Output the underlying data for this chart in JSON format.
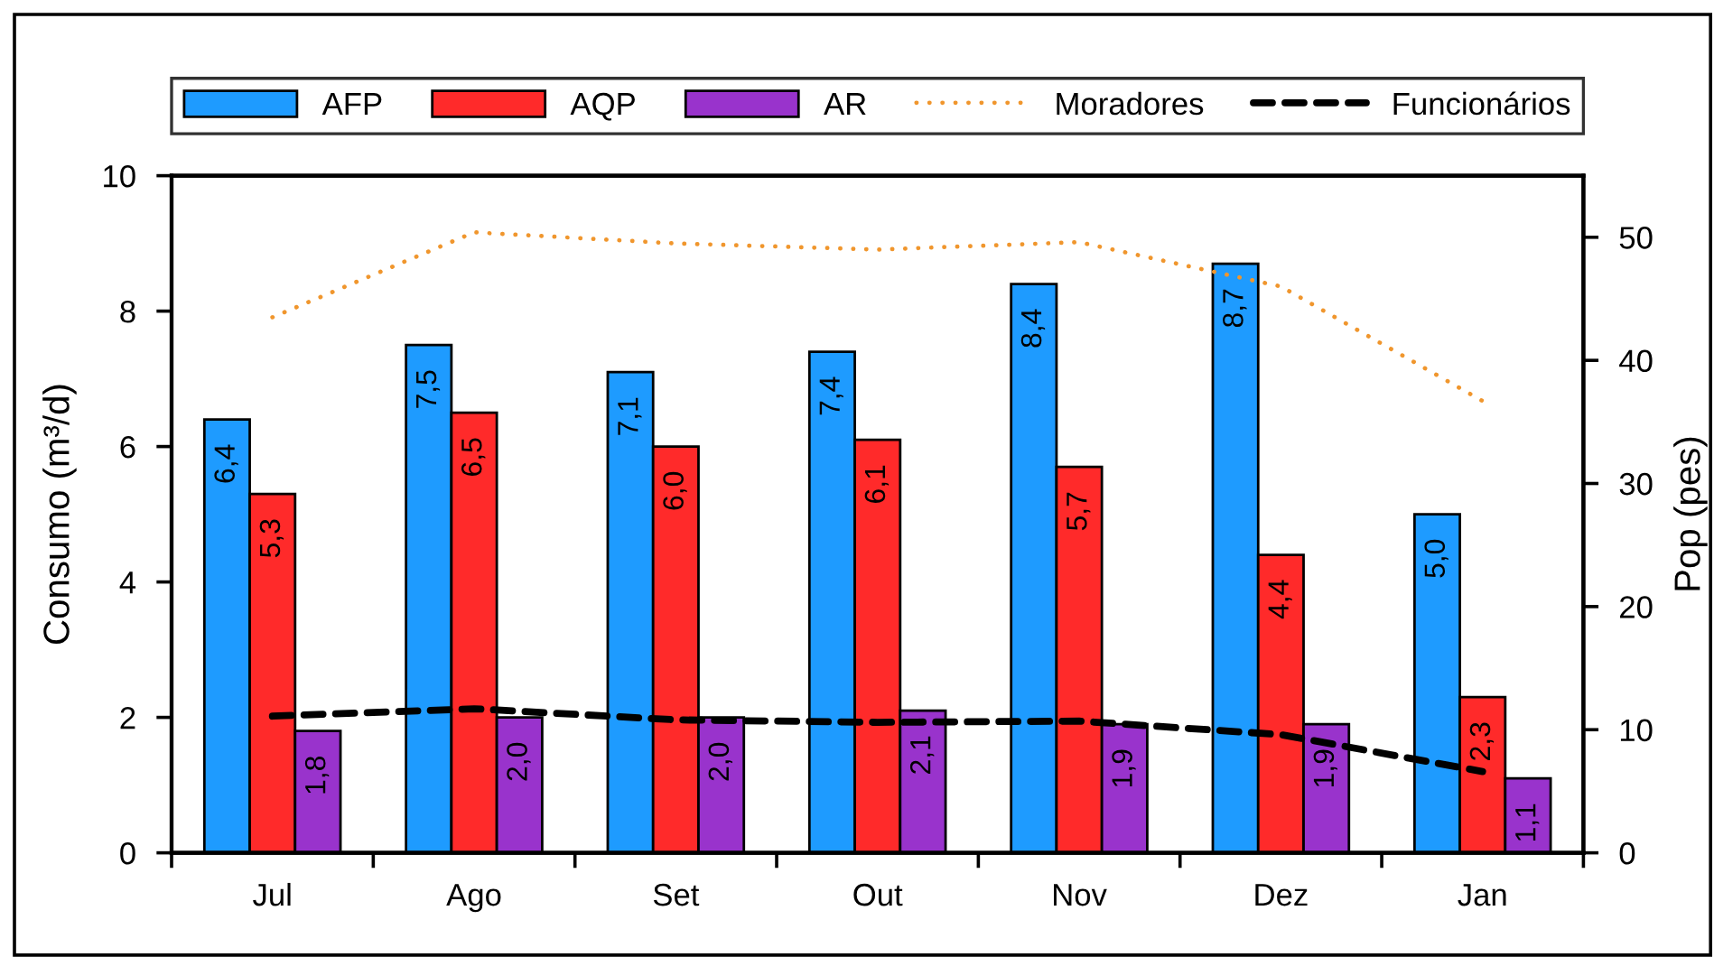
{
  "chart_data": {
    "type": "bar",
    "categories": [
      "Jul",
      "Ago",
      "Set",
      "Out",
      "Nov",
      "Dez",
      "Jan"
    ],
    "ylabel": "Consumo (m³/d)",
    "y2label": "Pop (pes)",
    "ylim": [
      0,
      10
    ],
    "yticks": [
      0,
      2,
      4,
      6,
      8,
      10
    ],
    "y2lim": [
      0,
      55
    ],
    "y2ticks": [
      0,
      10,
      20,
      30,
      40,
      50
    ],
    "legend": "top",
    "series": [
      {
        "name": "AFP",
        "color": "#1e9bff",
        "values": [
          6.4,
          7.5,
          7.1,
          7.4,
          8.4,
          8.7,
          5.0
        ],
        "value_labels": [
          "6,4",
          "7,5",
          "7,1",
          "7,4",
          "8,4",
          "8,7",
          "5,0"
        ]
      },
      {
        "name": "AQP",
        "color": "#ff2a2a",
        "values": [
          5.3,
          6.5,
          6.0,
          6.1,
          5.7,
          4.4,
          2.3
        ],
        "value_labels": [
          "5,3",
          "6,5",
          "6,0",
          "6,1",
          "5,7",
          "4,4",
          "2,3"
        ]
      },
      {
        "name": "AR",
        "color": "#9933cc",
        "values": [
          1.8,
          2.0,
          2.0,
          2.1,
          1.9,
          1.9,
          1.1
        ],
        "value_labels": [
          "1,8",
          "2,0",
          "2,0",
          "2,1",
          "1,9",
          "1,9",
          "1,1"
        ]
      },
      {
        "name": "Moradores",
        "type": "line",
        "axis": "y2",
        "line_style": "dotted",
        "color": "#f0962d",
        "values": [
          43.5,
          50.4,
          49.5,
          49.0,
          49.6,
          46.0,
          36.7
        ]
      },
      {
        "name": "Funcionários",
        "type": "line",
        "axis": "y2",
        "line_style": "dashed",
        "color": "#000000",
        "values": [
          11.1,
          11.7,
          10.8,
          10.6,
          10.7,
          9.6,
          6.6
        ]
      }
    ]
  }
}
